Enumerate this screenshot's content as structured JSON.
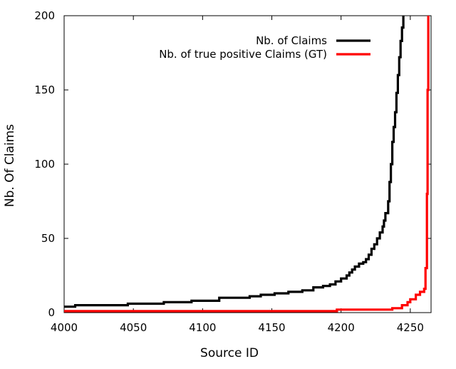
{
  "chart_data": {
    "type": "line",
    "title": "",
    "xlabel": "Source ID",
    "ylabel": "Nb. Of Claims",
    "xlim": [
      4000,
      4265
    ],
    "ylim": [
      0,
      200
    ],
    "xticks": [
      4000,
      4050,
      4100,
      4150,
      4200,
      4250
    ],
    "yticks": [
      0,
      50,
      100,
      150,
      200
    ],
    "grid": false,
    "legend_position": "top-right",
    "series": [
      {
        "name": "Nb. of Claims",
        "color": "#000000",
        "x": [
          4000,
          4008,
          4046,
          4072,
          4092,
          4112,
          4134,
          4142,
          4152,
          4162,
          4172,
          4180,
          4187,
          4192,
          4196,
          4200,
          4204,
          4206,
          4208,
          4210,
          4213,
          4216,
          4218,
          4220,
          4222,
          4224,
          4226,
          4228,
          4230,
          4231,
          4232,
          4234,
          4235,
          4236,
          4237,
          4238,
          4239,
          4240,
          4241,
          4242,
          4243,
          4244,
          4245
        ],
        "y": [
          4,
          5,
          6,
          7,
          8,
          10,
          11,
          12,
          13,
          14,
          15,
          17,
          18,
          19,
          21,
          23,
          25,
          27,
          29,
          31,
          33,
          34,
          36,
          39,
          43,
          46,
          50,
          54,
          58,
          62,
          67,
          75,
          88,
          100,
          115,
          125,
          135,
          148,
          160,
          172,
          183,
          192,
          200
        ]
      },
      {
        "name": "Nb. of true positive Claims (GT)",
        "color": "#ff0000",
        "x": [
          4000,
          4196,
          4197,
          4236,
          4237,
          4242,
          4244,
          4248,
          4250,
          4254,
          4257,
          4260,
          4261,
          4262,
          4262.5,
          4263
        ],
        "y": [
          1,
          1,
          2,
          2,
          3,
          3,
          5,
          7,
          9,
          12,
          14,
          16,
          30,
          80,
          150,
          200
        ]
      }
    ]
  }
}
